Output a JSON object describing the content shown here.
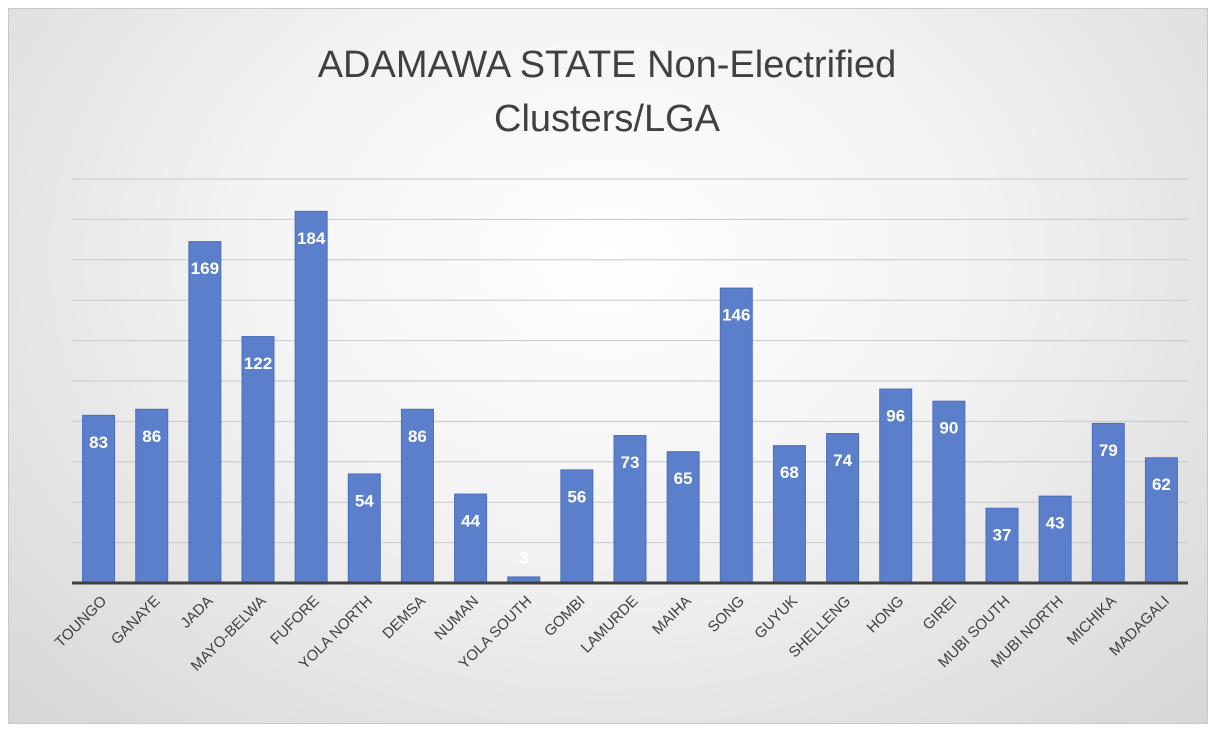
{
  "chart_data": {
    "type": "bar",
    "title": "ADAMAWA STATE Non-Electrified Clusters/LGA",
    "categories": [
      "TOUNGO",
      "GANAYE",
      "JADA",
      "MAYO-BELWA",
      "FUFORE",
      "YOLA NORTH",
      "DEMSA",
      "NUMAN",
      "YOLA SOUTH",
      "GOMBI",
      "LAMURDE",
      "MAIHA",
      "SONG",
      "GUYUK",
      "SHELLENG",
      "HONG",
      "GIREI",
      "MUBI SOUTH",
      "MUBI NORTH",
      "MICHIKA",
      "MADAGALI"
    ],
    "values": [
      83,
      86,
      169,
      122,
      184,
      54,
      86,
      44,
      3,
      56,
      73,
      65,
      146,
      68,
      74,
      96,
      90,
      37,
      43,
      79,
      62
    ],
    "color": "#5b7fcb",
    "ylim": [
      0,
      200
    ],
    "yticks": [
      0,
      20,
      40,
      60,
      80,
      100,
      120,
      140,
      160,
      180,
      200
    ],
    "grid": true
  }
}
